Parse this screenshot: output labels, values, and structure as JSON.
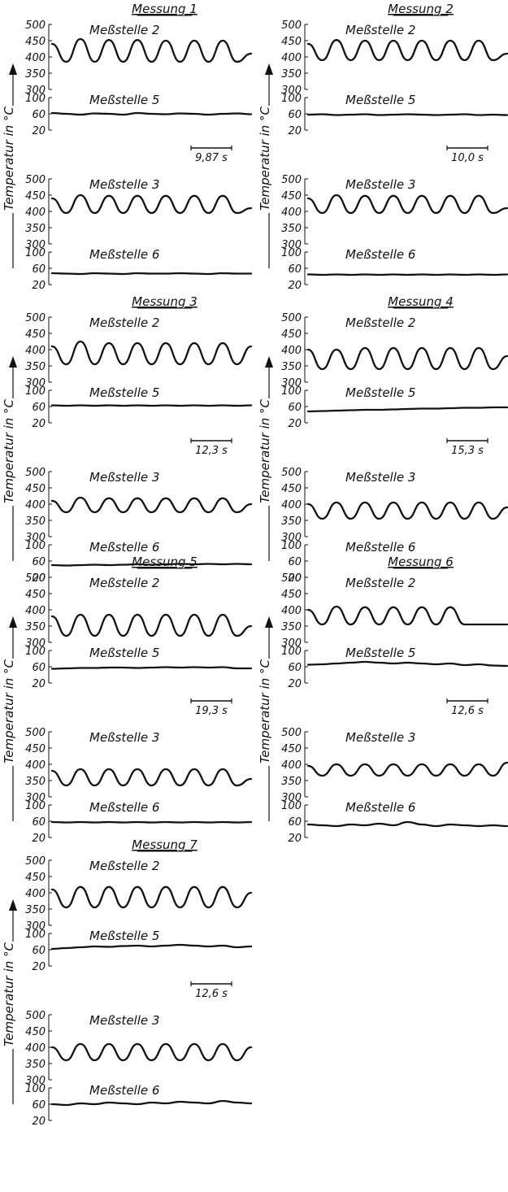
{
  "chart_data": [
    {
      "type": "line",
      "title": "Messung 1",
      "ylabel": "Temperatur in °C",
      "time_scale_label": "9,87 s",
      "top": {
        "yticks": [
          "500",
          "450",
          "400",
          "350",
          "300"
        ],
        "ylim": [
          300,
          500
        ],
        "series": [
          {
            "name": "Meßstelle 2",
            "values": [
              440,
              385,
              455,
              385,
              452,
              385,
              452,
              385,
              450,
              385,
              450,
              385,
              450,
              385,
              410
            ]
          }
        ]
      },
      "bottom": {
        "yticks": [
          "100",
          "60",
          "20"
        ],
        "ylim": [
          20,
          100
        ],
        "series": [
          {
            "name": "Meßstelle 5",
            "values": [
              62,
              60,
              58,
              61,
              60,
              58,
              62,
              60,
              59,
              61,
              60,
              58,
              60,
              61,
              59
            ]
          }
        ]
      },
      "top2": {
        "yticks": [
          "500",
          "450",
          "400",
          "350",
          "300"
        ],
        "ylim": [
          300,
          500
        ],
        "series": [
          {
            "name": "Meßstelle 3",
            "values": [
              440,
              395,
              450,
              395,
              448,
              395,
              448,
              395,
              448,
              395,
              448,
              395,
              448,
              395,
              410
            ]
          }
        ]
      },
      "bottom2": {
        "yticks": [
          "100",
          "60",
          "20"
        ],
        "ylim": [
          20,
          100
        ],
        "series": [
          {
            "name": "Meßstelle 6",
            "values": [
              48,
              47,
              46,
              48,
              47,
              46,
              48,
              47,
              47,
              48,
              47,
              46,
              48,
              47,
              47
            ]
          }
        ]
      }
    },
    {
      "type": "line",
      "title": "Messung 2",
      "ylabel": "Temperatur in °C",
      "time_scale_label": "10,0 s",
      "top": {
        "yticks": [
          "500",
          "450",
          "400",
          "350",
          "300"
        ],
        "ylim": [
          300,
          500
        ],
        "series": [
          {
            "name": "Meßstelle 2",
            "values": [
              440,
              390,
              452,
              390,
              450,
              390,
              450,
              390,
              450,
              390,
              450,
              390,
              450,
              390,
              410
            ]
          }
        ]
      },
      "bottom": {
        "yticks": [
          "100",
          "60",
          "20"
        ],
        "ylim": [
          20,
          100
        ],
        "series": [
          {
            "name": "Meßstelle 5",
            "values": [
              58,
              59,
              57,
              58,
              59,
              57,
              58,
              59,
              58,
              57,
              58,
              59,
              57,
              58,
              57
            ]
          }
        ]
      },
      "top2": {
        "yticks": [
          "500",
          "450",
          "400",
          "350",
          "300"
        ],
        "ylim": [
          300,
          500
        ],
        "series": [
          {
            "name": "Meßstelle 3",
            "values": [
              440,
              395,
              450,
              395,
              448,
              395,
              448,
              395,
              448,
              395,
              448,
              395,
              448,
              395,
              410
            ]
          }
        ]
      },
      "bottom2": {
        "yticks": [
          "100",
          "60",
          "20"
        ],
        "ylim": [
          20,
          100
        ],
        "series": [
          {
            "name": "Meßstelle 6",
            "values": [
              45,
              44,
              45,
              44,
              45,
              44,
              45,
              44,
              45,
              44,
              45,
              44,
              45,
              44,
              45
            ]
          }
        ]
      }
    },
    {
      "type": "line",
      "title": "Messung 3",
      "ylabel": "Temperatur in °C",
      "time_scale_label": "12,3 s",
      "top": {
        "yticks": [
          "500",
          "450",
          "400",
          "350",
          "300"
        ],
        "ylim": [
          300,
          500
        ],
        "series": [
          {
            "name": "Meßstelle 2",
            "values": [
              410,
              355,
              425,
              355,
              420,
              355,
              420,
              355,
              420,
              355,
              420,
              355,
              420,
              355,
              410
            ]
          }
        ]
      },
      "bottom": {
        "yticks": [
          "100",
          "60",
          "20"
        ],
        "ylim": [
          20,
          100
        ],
        "series": [
          {
            "name": "Meßstelle 5",
            "values": [
              63,
              62,
              63,
              62,
              63,
              62,
              63,
              62,
              63,
              62,
              63,
              62,
              63,
              62,
              63
            ]
          }
        ]
      },
      "top2": {
        "yticks": [
          "500",
          "450",
          "400",
          "350",
          "300"
        ],
        "ylim": [
          300,
          500
        ],
        "series": [
          {
            "name": "Meßstelle 3",
            "values": [
              410,
              375,
              420,
              375,
              418,
              375,
              418,
              375,
              418,
              375,
              418,
              375,
              418,
              375,
              400
            ]
          }
        ]
      },
      "bottom2": {
        "yticks": [
          "100",
          "60",
          "20"
        ],
        "ylim": [
          20,
          100
        ],
        "series": [
          {
            "name": "Meßstelle 6",
            "values": [
              50,
              49,
              50,
              51,
              50,
              51,
              52,
              51,
              52,
              53,
              52,
              53,
              52,
              53,
              52
            ]
          }
        ]
      }
    },
    {
      "type": "line",
      "title": "Messung 4",
      "ylabel": "Temperatur in °C",
      "time_scale_label": "15,3 s",
      "top": {
        "yticks": [
          "500",
          "450",
          "400",
          "350",
          "300"
        ],
        "ylim": [
          300,
          500
        ],
        "series": [
          {
            "name": "Meßstelle 2",
            "values": [
              400,
              340,
              400,
              340,
              405,
              340,
              405,
              340,
              405,
              340,
              405,
              340,
              405,
              340,
              380
            ]
          }
        ]
      },
      "bottom": {
        "yticks": [
          "100",
          "60",
          "20"
        ],
        "ylim": [
          20,
          100
        ],
        "series": [
          {
            "name": "Meßstelle 5",
            "values": [
              48,
              49,
              50,
              51,
              52,
              52,
              53,
              54,
              55,
              55,
              56,
              57,
              57,
              58,
              58
            ]
          }
        ]
      },
      "top2": {
        "yticks": [
          "500",
          "450",
          "400",
          "350",
          "300"
        ],
        "ylim": [
          300,
          500
        ],
        "series": [
          {
            "name": "Meßstelle 3",
            "values": [
              400,
              355,
              405,
              355,
              405,
              355,
              405,
              355,
              405,
              355,
              405,
              355,
              405,
              355,
              390
            ]
          }
        ]
      },
      "bottom2": {
        "yticks": [
          "100",
          "60",
          "20"
        ],
        "ylim": [
          20,
          100
        ],
        "series": [
          {
            "name": "Meßstelle 6",
            "values": []
          }
        ]
      }
    },
    {
      "type": "line",
      "title": "Messung 5",
      "ylabel": "Temperatur in °C",
      "time_scale_label": "19,3 s",
      "top": {
        "yticks": [
          "500",
          "450",
          "400",
          "350",
          "300"
        ],
        "ylim": [
          300,
          500
        ],
        "series": [
          {
            "name": "Meßstelle 2",
            "values": [
              380,
              320,
              385,
              320,
              385,
              320,
              385,
              320,
              385,
              320,
              385,
              320,
              385,
              320,
              350
            ]
          }
        ]
      },
      "bottom": {
        "yticks": [
          "100",
          "60",
          "20"
        ],
        "ylim": [
          20,
          100
        ],
        "series": [
          {
            "name": "Meßstelle 5",
            "values": [
              55,
              56,
              57,
              57,
              58,
              58,
              57,
              58,
              59,
              58,
              59,
              58,
              59,
              56,
              56
            ]
          }
        ]
      },
      "top2": {
        "yticks": [
          "500",
          "450",
          "400",
          "350",
          "300"
        ],
        "ylim": [
          300,
          500
        ],
        "series": [
          {
            "name": "Meßstelle 3",
            "values": [
              380,
              335,
              385,
              335,
              385,
              335,
              385,
              335,
              385,
              335,
              385,
              335,
              385,
              335,
              355
            ]
          }
        ]
      },
      "bottom2": {
        "yticks": [
          "100",
          "60",
          "20"
        ],
        "ylim": [
          20,
          100
        ],
        "series": [
          {
            "name": "Meßstelle 6",
            "values": [
              58,
              57,
              58,
              57,
              58,
              57,
              58,
              57,
              58,
              57,
              58,
              57,
              58,
              57,
              58
            ]
          }
        ]
      }
    },
    {
      "type": "line",
      "title": "Messung 6",
      "ylabel": "Temperatur in °C",
      "time_scale_label": "12,6 s",
      "top": {
        "yticks": [
          "500",
          "450",
          "400",
          "350",
          "300"
        ],
        "ylim": [
          300,
          500
        ],
        "series": [
          {
            "name": "Meßstelle 2",
            "values": [
              400,
              355,
              410,
              355,
              408,
              355,
              408,
              355,
              408,
              355,
              408,
              355,
              355,
              355,
              355
            ]
          }
        ]
      },
      "bottom": {
        "yticks": [
          "100",
          "60",
          "20"
        ],
        "ylim": [
          20,
          100
        ],
        "series": [
          {
            "name": "Meßstelle 5",
            "values": [
              65,
              66,
              68,
              70,
              72,
              70,
              68,
              70,
              68,
              66,
              68,
              64,
              66,
              63,
              62
            ]
          }
        ]
      },
      "top2": {
        "yticks": [
          "500",
          "450",
          "400",
          "350",
          "300"
        ],
        "ylim": [
          300,
          500
        ],
        "series": [
          {
            "name": "Meßstelle 3",
            "values": [
              395,
              365,
              400,
              365,
              400,
              365,
              400,
              365,
              400,
              365,
              400,
              365,
              400,
              365,
              405
            ]
          }
        ]
      },
      "bottom2": {
        "yticks": [
          "100",
          "60",
          "20"
        ],
        "ylim": [
          20,
          100
        ],
        "series": [
          {
            "name": "Meßstelle 6",
            "values": [
              52,
              50,
              48,
              52,
              50,
              54,
              50,
              58,
              52,
              48,
              52,
              50,
              48,
              50,
              48
            ]
          }
        ]
      }
    },
    {
      "type": "line",
      "title": "Messung 7",
      "ylabel": "Temperatur in °C",
      "time_scale_label": "12,6 s",
      "top": {
        "yticks": [
          "500",
          "450",
          "400",
          "350",
          "300"
        ],
        "ylim": [
          300,
          500
        ],
        "series": [
          {
            "name": "Meßstelle 2",
            "values": [
              410,
              355,
              418,
              355,
              418,
              355,
              418,
              355,
              418,
              355,
              418,
              355,
              418,
              355,
              400
            ]
          }
        ]
      },
      "bottom": {
        "yticks": [
          "100",
          "60",
          "20"
        ],
        "ylim": [
          20,
          100
        ],
        "series": [
          {
            "name": "Meßstelle 5",
            "values": [
              62,
              64,
              66,
              68,
              67,
              69,
              70,
              68,
              70,
              72,
              70,
              68,
              70,
              66,
              68
            ]
          }
        ]
      },
      "top2": {
        "yticks": [
          "500",
          "450",
          "400",
          "350",
          "300"
        ],
        "ylim": [
          300,
          500
        ],
        "series": [
          {
            "name": "Meßstelle 3",
            "values": [
              400,
              360,
              410,
              360,
              410,
              360,
              410,
              360,
              410,
              360,
              410,
              360,
              410,
              360,
              400
            ]
          }
        ]
      },
      "bottom2": {
        "yticks": [
          "100",
          "60",
          "20"
        ],
        "ylim": [
          20,
          100
        ],
        "series": [
          {
            "name": "Meßstelle 6",
            "values": [
              60,
              58,
              62,
              60,
              64,
              62,
              60,
              64,
              62,
              66,
              64,
              62,
              68,
              64,
              62
            ]
          }
        ]
      }
    }
  ]
}
